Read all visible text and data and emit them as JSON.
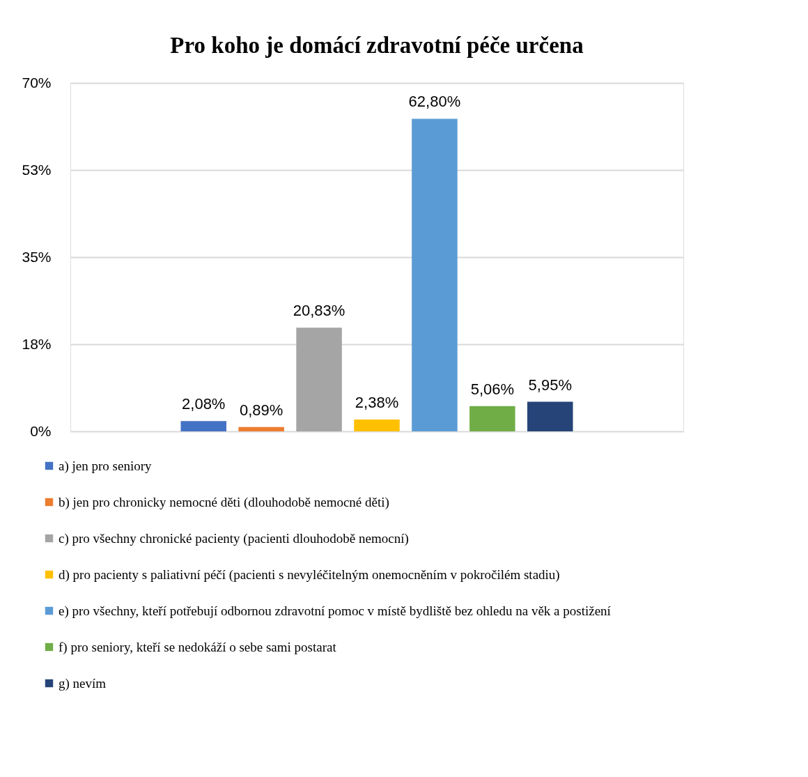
{
  "chart_data": {
    "type": "bar",
    "title": "Pro koho je domácí zdravotní péče určena",
    "categories": [
      null
    ],
    "series": [
      {
        "name": "a) jen pro seniory",
        "color": "#4472c4",
        "values": [
          2.08
        ],
        "value_labels": [
          "2,08%"
        ]
      },
      {
        "name": "b) jen pro chronicky nemocné děti (dlouhodobě nemocné děti)",
        "color": "#ed7d31",
        "values": [
          0.89
        ],
        "value_labels": [
          "0,89%"
        ]
      },
      {
        "name": "c) pro všechny chronické pacienty (pacienti dlouhodobě nemocní)",
        "color": "#a5a5a5",
        "values": [
          20.83
        ],
        "value_labels": [
          "20,83%"
        ]
      },
      {
        "name": "d) pro pacienty s paliativní péčí (pacienti s nevyléčitelným onemocněním v pokročilém stadiu)",
        "color": "#ffc000",
        "values": [
          2.38
        ],
        "value_labels": [
          "2,38%"
        ]
      },
      {
        "name": "e) pro všechny, kteří potřebují odbornou zdravotní pomoc v místě bydliště bez ohledu na věk a postižení",
        "color": "#5b9bd5",
        "values": [
          62.8
        ],
        "value_labels": [
          "62,80%"
        ]
      },
      {
        "name": "f) pro seniory, kteří se nedokáží o sebe sami postarat",
        "color": "#70ad47",
        "values": [
          5.06
        ],
        "value_labels": [
          "5,06%"
        ]
      },
      {
        "name": "g) nevím",
        "color": "#264478",
        "values": [
          5.95
        ],
        "value_labels": [
          "5,95%"
        ]
      }
    ],
    "ylim": [
      0,
      70
    ],
    "yticks": [
      {
        "value": 0,
        "label": "0%"
      },
      {
        "value": 17.5,
        "label": "18%"
      },
      {
        "value": 35,
        "label": "35%"
      },
      {
        "value": 52.5,
        "label": "53%"
      },
      {
        "value": 70,
        "label": "70%"
      }
    ],
    "grid": "y",
    "legend": "bottom",
    "tick_labels": "y"
  }
}
